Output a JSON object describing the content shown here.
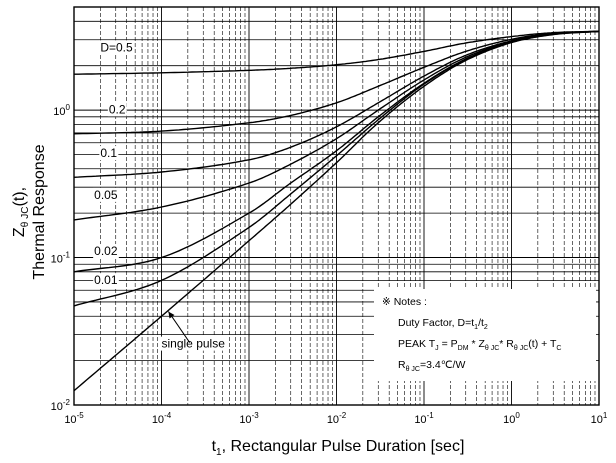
{
  "chart_data": {
    "type": "line",
    "xscale": "log",
    "yscale": "log",
    "xlim": [
      1e-05,
      10
    ],
    "ylim": [
      0.01,
      5
    ],
    "grid": true,
    "x_ticks": [
      {
        "base": "10",
        "exp": "-5"
      },
      {
        "base": "10",
        "exp": "-4"
      },
      {
        "base": "10",
        "exp": "-3"
      },
      {
        "base": "10",
        "exp": "-2"
      },
      {
        "base": "10",
        "exp": "-1"
      },
      {
        "base": "10",
        "exp": "0"
      },
      {
        "base": "10",
        "exp": "1"
      }
    ],
    "y_ticks": [
      {
        "value": 0.01,
        "base": "10",
        "exp": "-2"
      },
      {
        "value": 0.1,
        "base": "10",
        "exp": "-1"
      },
      {
        "value": 1,
        "base": "10",
        "exp": "0"
      }
    ],
    "xlabel": {
      "main": "t",
      "sub": "1",
      "rest": ", Rectangular Pulse Duration [sec]"
    },
    "ylabel": {
      "line1": {
        "main": "Z",
        "sub1": "θ",
        "sub2": "JC",
        "rest": "(t),"
      },
      "line2": "Thermal Response"
    },
    "series": [
      {
        "name": "D=0.5",
        "x": [
          1e-05,
          0.0001,
          0.001,
          0.003,
          0.01,
          0.03,
          0.1,
          0.3,
          1,
          3,
          10
        ],
        "y": [
          1.75,
          1.79,
          1.86,
          1.92,
          2.03,
          2.2,
          2.5,
          2.85,
          3.15,
          3.35,
          3.42
        ]
      },
      {
        "name": "0.2",
        "x": [
          1e-05,
          0.0001,
          0.001,
          0.003,
          0.01,
          0.03,
          0.1,
          0.3,
          1,
          3,
          10
        ],
        "y": [
          0.69,
          0.72,
          0.82,
          0.92,
          1.12,
          1.45,
          1.95,
          2.5,
          3.02,
          3.32,
          3.42
        ]
      },
      {
        "name": "0.1",
        "x": [
          1e-05,
          0.0001,
          0.001,
          0.003,
          0.01,
          0.03,
          0.1,
          0.3,
          1,
          3,
          10
        ],
        "y": [
          0.35,
          0.38,
          0.46,
          0.56,
          0.77,
          1.12,
          1.7,
          2.35,
          2.95,
          3.3,
          3.42
        ]
      },
      {
        "name": "0.05",
        "x": [
          1e-05,
          0.0001,
          0.001,
          0.003,
          0.01,
          0.03,
          0.1,
          0.3,
          1,
          3,
          10
        ],
        "y": [
          0.18,
          0.22,
          0.32,
          0.43,
          0.64,
          1.0,
          1.6,
          2.28,
          2.92,
          3.28,
          3.42
        ]
      },
      {
        "name": "0.02",
        "x": [
          1e-05,
          0.0001,
          0.001,
          0.003,
          0.01,
          0.03,
          0.1,
          0.3,
          1,
          3,
          10
        ],
        "y": [
          0.08,
          0.1,
          0.2,
          0.32,
          0.53,
          0.9,
          1.52,
          2.22,
          2.9,
          3.27,
          3.42
        ]
      },
      {
        "name": "0.01",
        "x": [
          1e-05,
          0.0001,
          0.001,
          0.003,
          0.01,
          0.03,
          0.1,
          0.3,
          1,
          3,
          10
        ],
        "y": [
          0.047,
          0.07,
          0.16,
          0.27,
          0.49,
          0.86,
          1.5,
          2.2,
          2.88,
          3.26,
          3.42
        ]
      },
      {
        "name": "single pulse",
        "x": [
          1e-05,
          0.0001,
          0.001,
          0.003,
          0.01,
          0.03,
          0.1,
          0.3,
          1,
          3,
          10
        ],
        "y": [
          0.0125,
          0.04,
          0.13,
          0.23,
          0.44,
          0.82,
          1.45,
          2.17,
          2.87,
          3.25,
          3.42
        ]
      }
    ],
    "annotations": {
      "single_pulse_label": "single pulse",
      "notes": {
        "title": "※  Notes :",
        "duty": {
          "pre": "Duty Factor, D=t",
          "sub1": "1",
          "mid": "/t",
          "sub2": "2"
        },
        "peak": {
          "pre": "PEAK T",
          "sJ": "J",
          "a": " = P",
          "sDM": "DM",
          "b": " * Z",
          "sTh1": "θ JC",
          "c": "* R",
          "sTh2": "θ JC",
          "d": "(t) + T",
          "sC": "C"
        },
        "r": {
          "pre": "R",
          "sub": "θ JC",
          "rest": "=3.4℃/W"
        }
      }
    }
  }
}
